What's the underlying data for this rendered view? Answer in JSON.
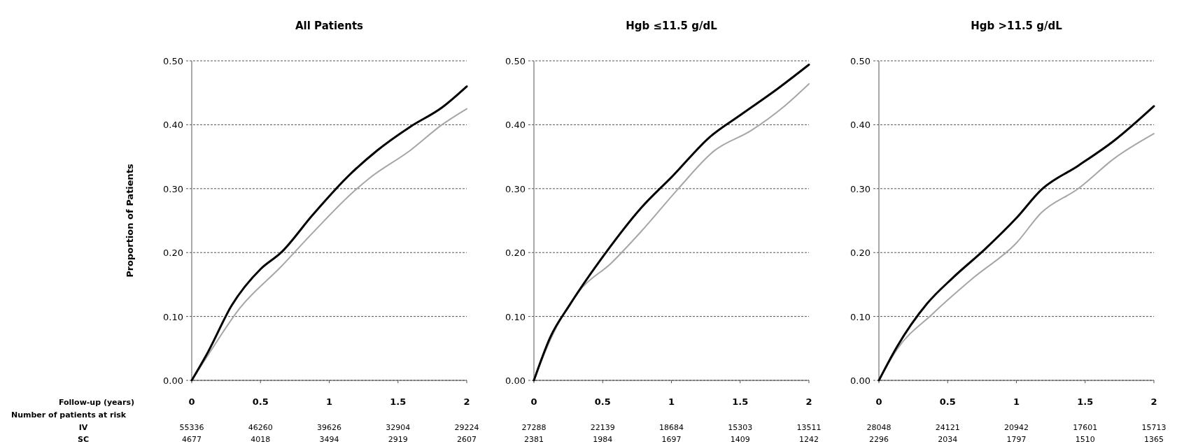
{
  "chart_data": [
    {
      "type": "line",
      "title": "All Patients",
      "ylabel": "Proportion of Patients",
      "xlim": [
        0,
        2
      ],
      "xticks": [
        0,
        0.5,
        1,
        1.5,
        2
      ],
      "ylim": [
        0,
        0.5
      ],
      "yticks": [
        {
          "value": 0,
          "label": "0.00"
        },
        {
          "value": 0.1,
          "label": "0.10"
        },
        {
          "value": 0.2,
          "label": "0.20"
        },
        {
          "value": 0.3,
          "label": "0.30"
        },
        {
          "value": 0.4,
          "label": "0.40"
        },
        {
          "value": 0.5,
          "label": "0.50"
        }
      ],
      "grid": "y",
      "line_style": "solid",
      "annotations": [
        "Follow-up (years)",
        "Number of patients at risk",
        "IV",
        "SC",
        "55336 46260 39626 32904 29224",
        "4677 4018 3494 2919 2607"
      ],
      "series": [
        {
          "color": "#a6a6a6",
          "x": [
            0,
            0.12,
            0.35,
            0.65,
            0.88,
            1.18,
            1.29,
            1.59,
            1.82,
            2
          ],
          "values": [
            0,
            0.04,
            0.113,
            0.178,
            0.231,
            0.296,
            0.316,
            0.36,
            0.4,
            0.425
          ]
        },
        {
          "color": "#000000",
          "x": [
            0,
            0.12,
            0.29,
            0.5,
            0.65,
            0.88,
            1.14,
            1.35,
            1.59,
            1.82,
            2
          ],
          "values": [
            0,
            0.045,
            0.117,
            0.174,
            0.2,
            0.259,
            0.32,
            0.36,
            0.397,
            0.427,
            0.46
          ]
        }
      ]
    },
    {
      "type": "line",
      "title": "Hgb ≤11.5 g/dL",
      "xlim": [
        0,
        2
      ],
      "xticks": [
        0,
        0.5,
        1,
        1.5,
        2
      ],
      "ylim": [
        0,
        0.5
      ],
      "yticks": [
        {
          "value": 0,
          "label": "0.00"
        },
        {
          "value": 0.1,
          "label": "0.10"
        },
        {
          "value": 0.2,
          "label": "0.20"
        },
        {
          "value": 0.3,
          "label": "0.30"
        },
        {
          "value": 0.4,
          "label": "0.40"
        },
        {
          "value": 0.5,
          "label": "0.50"
        }
      ],
      "grid": "y",
      "line_style": "solid",
      "annotations": [
        "27288 22139 18684 15303 13511",
        "2381 1984 1697 1409 1242"
      ],
      "series": [
        {
          "color": "#a6a6a6",
          "x": [
            0,
            0.12,
            0.33,
            0.56,
            0.78,
            1.05,
            1.31,
            1.58,
            1.81,
            2
          ],
          "values": [
            0,
            0.064,
            0.14,
            0.183,
            0.233,
            0.3,
            0.359,
            0.391,
            0.427,
            0.464
          ]
        },
        {
          "color": "#000000",
          "x": [
            0,
            0.12,
            0.26,
            0.52,
            0.78,
            1.01,
            1.28,
            1.5,
            1.77,
            2
          ],
          "values": [
            0,
            0.068,
            0.118,
            0.199,
            0.27,
            0.32,
            0.381,
            0.415,
            0.456,
            0.494
          ]
        }
      ]
    },
    {
      "type": "line",
      "title": "Hgb >11.5 g/dL",
      "xlim": [
        0,
        2
      ],
      "xticks": [
        0,
        0.5,
        1,
        1.5,
        2
      ],
      "ylim": [
        0,
        0.5
      ],
      "yticks": [
        {
          "value": 0,
          "label": "0.00"
        },
        {
          "value": 0.1,
          "label": "0.10"
        },
        {
          "value": 0.2,
          "label": "0.20"
        },
        {
          "value": 0.3,
          "label": "0.30"
        },
        {
          "value": 0.4,
          "label": "0.40"
        },
        {
          "value": 0.5,
          "label": "0.50"
        }
      ],
      "grid": "y",
      "line_style": "solid",
      "annotations": [
        "28048 24121 20942 17601 15713",
        "2296 2034 1797 1510 1365"
      ],
      "series": [
        {
          "color": "#a6a6a6",
          "x": [
            0,
            0.13,
            0.39,
            0.69,
            1.0,
            1.18,
            1.45,
            1.71,
            2
          ],
          "values": [
            0,
            0.048,
            0.104,
            0.161,
            0.215,
            0.262,
            0.3,
            0.347,
            0.386
          ]
        },
        {
          "color": "#000000",
          "x": [
            0,
            0.13,
            0.35,
            0.54,
            0.77,
            1.0,
            1.18,
            1.45,
            1.71,
            2
          ],
          "values": [
            0,
            0.052,
            0.12,
            0.161,
            0.205,
            0.254,
            0.298,
            0.336,
            0.375,
            0.429
          ]
        }
      ]
    }
  ]
}
